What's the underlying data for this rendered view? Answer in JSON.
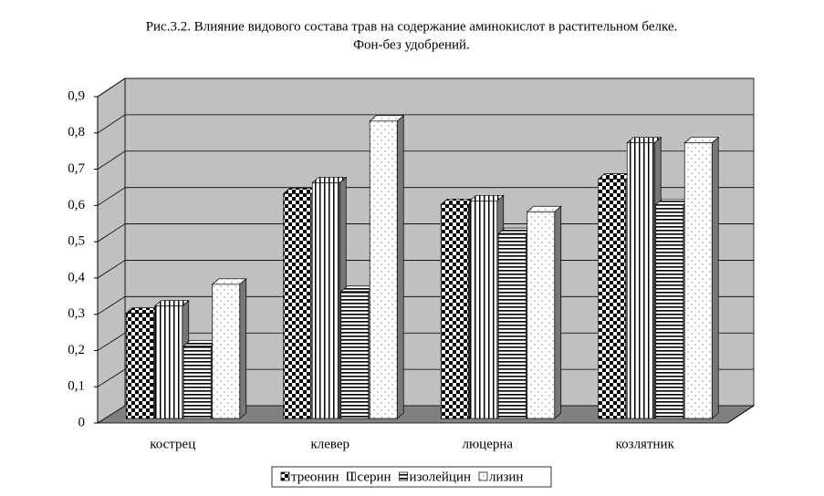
{
  "chart_data": {
    "type": "bar3d",
    "title": "Рис.3.2. Влияние видового состава трав на содержание аминокислот в растительном белке.",
    "subtitle": "Фон-без удобрений.",
    "categories": [
      "кострец",
      "клевер",
      "люцерна",
      "козлятник"
    ],
    "series": [
      {
        "name": "треонин",
        "pattern": "checker",
        "values": [
          0.29,
          0.62,
          0.59,
          0.66
        ]
      },
      {
        "name": "серин",
        "pattern": "vlines",
        "values": [
          0.31,
          0.65,
          0.6,
          0.76
        ]
      },
      {
        "name": "изолейцин",
        "pattern": "hlines",
        "values": [
          0.2,
          0.35,
          0.51,
          0.59
        ]
      },
      {
        "name": "лизин",
        "pattern": "dots",
        "values": [
          0.37,
          0.82,
          0.57,
          0.76
        ]
      }
    ],
    "ylim": [
      0,
      0.9
    ],
    "yticks": [
      0,
      {
        "value": 0.1,
        "label": "0,1"
      },
      {
        "value": 0.2,
        "label": "0,2"
      },
      {
        "value": 0.3,
        "label": "0,3"
      },
      {
        "value": 0.4,
        "label": "0,4"
      },
      {
        "value": 0.5,
        "label": "0,5"
      },
      {
        "value": 0.6,
        "label": "0,6"
      },
      {
        "value": 0.7,
        "label": "0,7"
      },
      {
        "value": 0.8,
        "label": "0,8"
      },
      {
        "value": 0.9,
        "label": "0,9"
      }
    ],
    "grid": true
  }
}
